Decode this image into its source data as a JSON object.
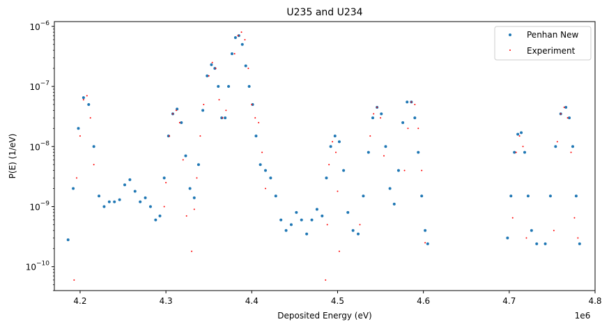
{
  "chart_data": {
    "type": "scatter",
    "title": "U235 and U234",
    "xlabel": "Deposited Energy (eV)",
    "ylabel": "P(E) (1/eV)",
    "x_offset_label": "1e6",
    "xlim": [
      4.17,
      4.8
    ],
    "ylim": [
      4e-11,
      1.2e-06
    ],
    "yscale": "log",
    "x_ticks": [
      4.2,
      4.3,
      4.4,
      4.5,
      4.6,
      4.7,
      4.8
    ],
    "x_tick_labels": [
      "4.2",
      "4.3",
      "4.4",
      "4.5",
      "4.6",
      "4.7",
      "4.8"
    ],
    "y_ticks": [
      1e-10,
      1e-09,
      1e-08,
      1e-07,
      1e-06
    ],
    "y_tick_labels": [
      {
        "base": "10",
        "exp": "−10"
      },
      {
        "base": "10",
        "exp": "−9"
      },
      {
        "base": "10",
        "exp": "−8"
      },
      {
        "base": "10",
        "exp": "−7"
      },
      {
        "base": "10",
        "exp": "−6"
      }
    ],
    "legend_position": "top-right",
    "grid": false,
    "series": [
      {
        "name": "Penhan New",
        "color": "#1f77b4",
        "marker": "dot",
        "x": [
          4.186,
          4.192,
          4.198,
          4.204,
          4.21,
          4.216,
          4.222,
          4.228,
          4.234,
          4.24,
          4.246,
          4.252,
          4.258,
          4.264,
          4.27,
          4.276,
          4.282,
          4.288,
          4.293,
          4.298,
          4.303,
          4.308,
          4.313,
          4.318,
          4.323,
          4.328,
          4.333,
          4.338,
          4.343,
          4.348,
          4.353,
          4.357,
          4.361,
          4.365,
          4.369,
          4.373,
          4.377,
          4.381,
          4.385,
          4.389,
          4.393,
          4.397,
          4.401,
          4.405,
          4.41,
          4.416,
          4.422,
          4.428,
          4.434,
          4.44,
          4.446,
          4.452,
          4.458,
          4.464,
          4.47,
          4.476,
          4.482,
          4.487,
          4.492,
          4.497,
          4.502,
          4.507,
          4.512,
          4.518,
          4.524,
          4.53,
          4.536,
          4.541,
          4.546,
          4.551,
          4.556,
          4.561,
          4.566,
          4.571,
          4.576,
          4.581,
          4.586,
          4.59,
          4.594,
          4.598,
          4.602,
          4.605,
          4.698,
          4.702,
          4.706,
          4.71,
          4.714,
          4.718,
          4.722,
          4.726,
          4.732,
          4.742,
          4.748,
          4.754,
          4.76,
          4.766,
          4.77,
          4.774,
          4.778,
          4.782
        ],
        "y": [
          2.8e-10,
          2e-09,
          2e-08,
          6.5e-08,
          5e-08,
          1e-08,
          1.5e-09,
          1e-09,
          1.2e-09,
          1.2e-09,
          1.3e-09,
          2.3e-09,
          2.8e-09,
          1.8e-09,
          1.2e-09,
          1.4e-09,
          1e-09,
          6e-10,
          7e-10,
          3e-09,
          1.5e-08,
          3.5e-08,
          4.2e-08,
          2.5e-08,
          7e-09,
          2e-09,
          1.4e-09,
          5e-09,
          4e-08,
          1.5e-07,
          2.3e-07,
          2e-07,
          1e-07,
          3e-08,
          3e-08,
          1e-07,
          3.5e-07,
          6.5e-07,
          7e-07,
          5e-07,
          2.2e-07,
          1e-07,
          5e-08,
          1.5e-08,
          5e-09,
          4e-09,
          3e-09,
          1.5e-09,
          6e-10,
          4e-10,
          5e-10,
          8e-10,
          6e-10,
          3.5e-10,
          6e-10,
          9e-10,
          7e-10,
          3e-09,
          1e-08,
          1.5e-08,
          1.2e-08,
          4e-09,
          8e-10,
          4e-10,
          3.5e-10,
          1.5e-09,
          8e-09,
          3e-08,
          4.5e-08,
          3.5e-08,
          1e-08,
          2e-09,
          1.1e-09,
          4e-09,
          2.5e-08,
          5.5e-08,
          5.5e-08,
          3e-08,
          8e-09,
          1.5e-09,
          4e-10,
          2.4e-10,
          3e-10,
          1.5e-09,
          8e-09,
          1.6e-08,
          1.7e-08,
          8e-09,
          1.5e-09,
          4e-10,
          2.4e-10,
          2.4e-10,
          1.5e-09,
          1e-08,
          3.5e-08,
          4.5e-08,
          3e-08,
          1e-08,
          1.5e-09,
          2.4e-10
        ]
      },
      {
        "name": "Experiment",
        "color": "#ff0000",
        "marker": "dot",
        "x": [
          4.193,
          4.196,
          4.2,
          4.204,
          4.208,
          4.212,
          4.216,
          4.298,
          4.3,
          4.304,
          4.308,
          4.312,
          4.316,
          4.32,
          4.324,
          4.33,
          4.333,
          4.336,
          4.34,
          4.344,
          4.35,
          4.354,
          4.358,
          4.362,
          4.366,
          4.37,
          4.38,
          4.384,
          4.388,
          4.392,
          4.396,
          4.4,
          4.404,
          4.408,
          4.412,
          4.416,
          4.486,
          4.488,
          4.49,
          4.494,
          4.498,
          4.5,
          4.502,
          4.526,
          4.538,
          4.542,
          4.546,
          4.55,
          4.554,
          4.578,
          4.582,
          4.586,
          4.59,
          4.594,
          4.598,
          4.602,
          4.704,
          4.708,
          4.712,
          4.716,
          4.72,
          4.752,
          4.756,
          4.76,
          4.764,
          4.768,
          4.772,
          4.776,
          4.78
        ],
        "y": [
          6e-11,
          3e-09,
          1.5e-08,
          6e-08,
          7e-08,
          3e-08,
          5e-09,
          1e-09,
          2.5e-09,
          1.5e-08,
          3.5e-08,
          4e-08,
          2.5e-08,
          6e-09,
          7e-10,
          1.8e-10,
          9e-10,
          3e-09,
          1.5e-08,
          5e-08,
          1.5e-07,
          2.5e-07,
          2e-07,
          6e-08,
          3e-08,
          4e-08,
          3.5e-07,
          7e-07,
          8e-07,
          6e-07,
          2e-07,
          5e-08,
          3e-08,
          2.5e-08,
          8e-09,
          2e-09,
          6e-11,
          5e-10,
          5e-09,
          1.2e-08,
          8e-09,
          1.8e-09,
          1.8e-10,
          5e-10,
          1.5e-08,
          3.5e-08,
          4.5e-08,
          3e-08,
          7e-09,
          4e-09,
          2e-08,
          5.5e-08,
          5e-08,
          2e-08,
          4e-09,
          2.5e-10,
          6.5e-10,
          8e-09,
          1.5e-08,
          1e-08,
          3e-10,
          4e-10,
          1.2e-08,
          3.5e-08,
          4.5e-08,
          3e-08,
          8e-09,
          6.5e-10,
          3e-10
        ]
      }
    ]
  }
}
